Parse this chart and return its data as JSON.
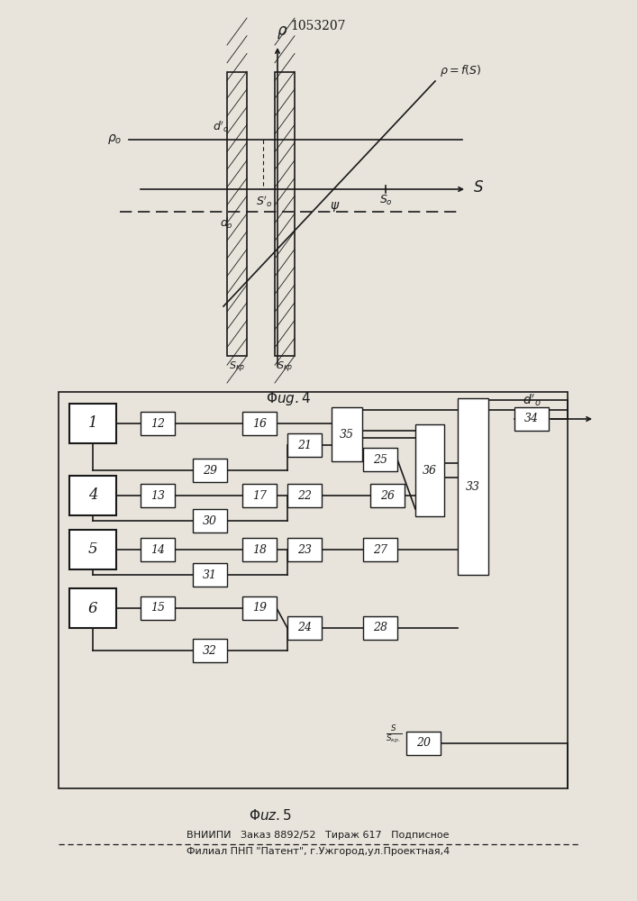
{
  "title": "1053207",
  "bg_color": "#e8e4dc",
  "line_color": "#1a1a1a",
  "footer_line1": "ВНИИПИ   Заказ 8892/52   Тираж 617   Подписное",
  "footer_line2": "Филиал ПНП \"Патент\", г.Ужгород,ул.Проектная,4"
}
